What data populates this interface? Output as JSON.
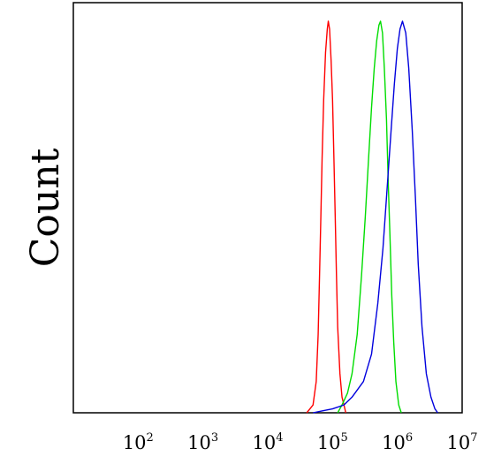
{
  "chart_data": {
    "type": "line",
    "title": "",
    "xlabel": "",
    "ylabel": "Count",
    "x_scale": "log",
    "xlim": [
      10,
      10000000
    ],
    "ylim": [
      0,
      1
    ],
    "grid": false,
    "legend": "none",
    "x_ticks": [
      {
        "value": 100,
        "base": "10",
        "exp": "2"
      },
      {
        "value": 1000,
        "base": "10",
        "exp": "3"
      },
      {
        "value": 10000,
        "base": "10",
        "exp": "4"
      },
      {
        "value": 100000,
        "base": "10",
        "exp": "5"
      },
      {
        "value": 1000000,
        "base": "10",
        "exp": "6"
      },
      {
        "value": 10000000,
        "base": "10",
        "exp": "7"
      }
    ],
    "series": [
      {
        "color": "#ff0000",
        "points": [
          [
            40000,
            0.0
          ],
          [
            50000,
            0.02
          ],
          [
            56000,
            0.08
          ],
          [
            60000,
            0.2
          ],
          [
            63000,
            0.35
          ],
          [
            66000,
            0.5
          ],
          [
            69000,
            0.65
          ],
          [
            73000,
            0.8
          ],
          [
            78000,
            0.92
          ],
          [
            83000,
            0.98
          ],
          [
            86000,
            1.0
          ],
          [
            90000,
            0.98
          ],
          [
            95000,
            0.9
          ],
          [
            100000,
            0.8
          ],
          [
            105000,
            0.65
          ],
          [
            110000,
            0.5
          ],
          [
            115000,
            0.35
          ],
          [
            120000,
            0.22
          ],
          [
            130000,
            0.1
          ],
          [
            140000,
            0.04
          ],
          [
            150000,
            0.02
          ],
          [
            160000,
            0.0
          ]
        ]
      },
      {
        "color": "#00dd00",
        "points": [
          [
            120000,
            0.0
          ],
          [
            140000,
            0.02
          ],
          [
            170000,
            0.05
          ],
          [
            200000,
            0.1
          ],
          [
            240000,
            0.2
          ],
          [
            280000,
            0.35
          ],
          [
            320000,
            0.5
          ],
          [
            360000,
            0.65
          ],
          [
            400000,
            0.78
          ],
          [
            440000,
            0.88
          ],
          [
            480000,
            0.95
          ],
          [
            520000,
            0.99
          ],
          [
            550000,
            1.0
          ],
          [
            590000,
            0.97
          ],
          [
            630000,
            0.88
          ],
          [
            680000,
            0.75
          ],
          [
            720000,
            0.6
          ],
          [
            770000,
            0.45
          ],
          [
            820000,
            0.3
          ],
          [
            880000,
            0.18
          ],
          [
            950000,
            0.08
          ],
          [
            1050000,
            0.02
          ],
          [
            1150000,
            0.0
          ]
        ]
      },
      {
        "color": "#0000dd",
        "points": [
          [
            50000,
            0.0
          ],
          [
            70000,
            0.005
          ],
          [
            100000,
            0.01
          ],
          [
            150000,
            0.02
          ],
          [
            200000,
            0.04
          ],
          [
            300000,
            0.08
          ],
          [
            400000,
            0.15
          ],
          [
            500000,
            0.28
          ],
          [
            600000,
            0.42
          ],
          [
            700000,
            0.58
          ],
          [
            800000,
            0.72
          ],
          [
            900000,
            0.84
          ],
          [
            1000000,
            0.93
          ],
          [
            1100000,
            0.98
          ],
          [
            1200000,
            1.0
          ],
          [
            1350000,
            0.97
          ],
          [
            1500000,
            0.88
          ],
          [
            1700000,
            0.72
          ],
          [
            1900000,
            0.55
          ],
          [
            2100000,
            0.38
          ],
          [
            2400000,
            0.22
          ],
          [
            2800000,
            0.1
          ],
          [
            3300000,
            0.04
          ],
          [
            3800000,
            0.01
          ],
          [
            4200000,
            0.0
          ]
        ]
      }
    ]
  }
}
